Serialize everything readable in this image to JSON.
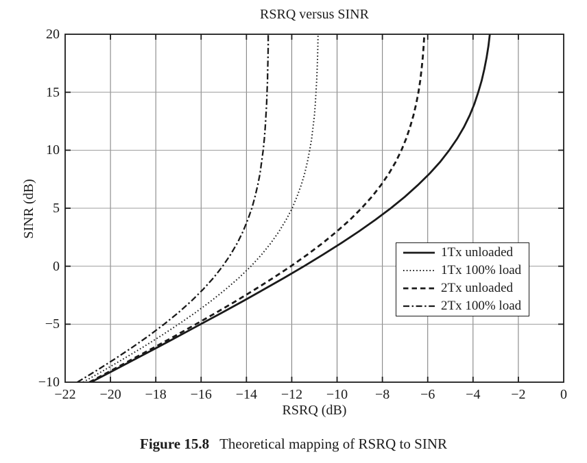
{
  "figure": {
    "title": "RSRQ versus SINR",
    "caption": {
      "label": "Figure 15.8",
      "text": "Theoretical mapping of RSRQ to SINR"
    }
  },
  "colors": {
    "line": "#1a1a1a",
    "grid_vertical": "#787878",
    "grid_horizontal": "#9c9c9c",
    "axis": "#1b1b1b",
    "text": "#1b1b1b",
    "background": "#ffffff",
    "legend_border": "#1b1b1b"
  },
  "chart_data": {
    "type": "line",
    "title": "RSRQ versus SINR",
    "xlabel": "RSRQ (dB)",
    "ylabel": "SINR (dB)",
    "xlim": [
      -22,
      0
    ],
    "ylim": [
      -10,
      20
    ],
    "x_ticks": [
      -22,
      -20,
      -18,
      -16,
      -14,
      -12,
      -10,
      -8,
      -6,
      -4,
      -2,
      0
    ],
    "y_ticks": [
      -10,
      -5,
      0,
      5,
      10,
      15,
      20
    ],
    "grid": true,
    "legend_position": "middle-right",
    "series": [
      {
        "name": "1Tx unloaded",
        "line_style": "solid",
        "asymptote_rsrq_db": -3.01,
        "points": [
          [
            -20.86,
            -10
          ],
          [
            -19.88,
            -9
          ],
          [
            -18.9,
            -8
          ],
          [
            -17.93,
            -7
          ],
          [
            -16.97,
            -6
          ],
          [
            -16.02,
            -5
          ],
          [
            -15.07,
            -4
          ],
          [
            -14.14,
            -3
          ],
          [
            -13.23,
            -2
          ],
          [
            -12.33,
            -1
          ],
          [
            -11.46,
            0
          ],
          [
            -10.62,
            1
          ],
          [
            -9.81,
            2
          ],
          [
            -9.04,
            3
          ],
          [
            -8.31,
            4
          ],
          [
            -7.63,
            5
          ],
          [
            -7.0,
            6
          ],
          [
            -6.43,
            7
          ],
          [
            -5.91,
            8
          ],
          [
            -5.45,
            9
          ],
          [
            -5.05,
            10
          ],
          [
            -4.7,
            11
          ],
          [
            -4.4,
            12
          ],
          [
            -4.15,
            13
          ],
          [
            -3.94,
            14
          ],
          [
            -3.77,
            15
          ],
          [
            -3.62,
            16
          ],
          [
            -3.5,
            17
          ],
          [
            -3.4,
            18
          ],
          [
            -3.32,
            19
          ],
          [
            -3.26,
            20
          ]
        ]
      },
      {
        "name": "1Tx 100% load",
        "line_style": "dotted",
        "asymptote_rsrq_db": -10.79,
        "points": [
          [
            -21.21,
            -10
          ],
          [
            -20.31,
            -9
          ],
          [
            -19.43,
            -8
          ],
          [
            -18.58,
            -7
          ],
          [
            -17.77,
            -6
          ],
          [
            -16.99,
            -5
          ],
          [
            -16.25,
            -4
          ],
          [
            -15.56,
            -3
          ],
          [
            -14.92,
            -2
          ],
          [
            -14.33,
            -1
          ],
          [
            -13.8,
            0
          ],
          [
            -13.33,
            1
          ],
          [
            -12.92,
            2
          ],
          [
            -12.56,
            3
          ],
          [
            -12.25,
            4
          ],
          [
            -11.98,
            5
          ],
          [
            -11.77,
            6
          ],
          [
            -11.58,
            7
          ],
          [
            -11.43,
            8
          ],
          [
            -11.31,
            9
          ],
          [
            -11.21,
            10
          ],
          [
            -11.12,
            11
          ],
          [
            -11.06,
            12
          ],
          [
            -11.0,
            13
          ],
          [
            -10.96,
            14
          ],
          [
            -10.93,
            15
          ],
          [
            -10.9,
            16
          ],
          [
            -10.88,
            17
          ],
          [
            -10.86,
            18
          ],
          [
            -10.85,
            19
          ],
          [
            -10.84,
            20
          ]
        ]
      },
      {
        "name": "2Tx unloaded",
        "line_style": "dashed",
        "asymptote_rsrq_db": -6.02,
        "points": [
          [
            -20.93,
            -10
          ],
          [
            -19.97,
            -9
          ],
          [
            -19.02,
            -8
          ],
          [
            -18.07,
            -7
          ],
          [
            -17.14,
            -6
          ],
          [
            -16.23,
            -5
          ],
          [
            -15.33,
            -4
          ],
          [
            -14.46,
            -3
          ],
          [
            -13.62,
            -2
          ],
          [
            -12.81,
            -1
          ],
          [
            -12.04,
            0
          ],
          [
            -11.31,
            1
          ],
          [
            -10.63,
            2
          ],
          [
            -10.01,
            3
          ],
          [
            -9.43,
            4
          ],
          [
            -8.92,
            5
          ],
          [
            -8.46,
            6
          ],
          [
            -8.06,
            7
          ],
          [
            -7.71,
            8
          ],
          [
            -7.41,
            9
          ],
          [
            -7.16,
            10
          ],
          [
            -6.95,
            11
          ],
          [
            -6.78,
            12
          ],
          [
            -6.63,
            13
          ],
          [
            -6.51,
            14
          ],
          [
            -6.41,
            15
          ],
          [
            -6.33,
            16
          ],
          [
            -6.27,
            17
          ],
          [
            -6.22,
            18
          ],
          [
            -6.18,
            19
          ],
          [
            -6.15,
            20
          ]
        ]
      },
      {
        "name": "2Tx 100% load",
        "line_style": "dash-dot",
        "asymptote_rsrq_db": -13.01,
        "points": [
          [
            -21.46,
            -10
          ],
          [
            -20.62,
            -9
          ],
          [
            -19.81,
            -8
          ],
          [
            -19.04,
            -7
          ],
          [
            -18.31,
            -6
          ],
          [
            -17.63,
            -5
          ],
          [
            -17.0,
            -4
          ],
          [
            -16.43,
            -3
          ],
          [
            -15.91,
            -2
          ],
          [
            -15.45,
            -1
          ],
          [
            -15.05,
            0
          ],
          [
            -14.7,
            1
          ],
          [
            -14.4,
            2
          ],
          [
            -14.15,
            3
          ],
          [
            -13.94,
            4
          ],
          [
            -13.76,
            5
          ],
          [
            -13.62,
            6
          ],
          [
            -13.5,
            7
          ],
          [
            -13.4,
            8
          ],
          [
            -13.33,
            9
          ],
          [
            -13.26,
            10
          ],
          [
            -13.21,
            11
          ],
          [
            -13.17,
            12
          ],
          [
            -13.14,
            13
          ],
          [
            -13.11,
            14
          ],
          [
            -13.09,
            15
          ],
          [
            -13.07,
            16
          ],
          [
            -13.06,
            17
          ],
          [
            -13.05,
            18
          ],
          [
            -13.04,
            19
          ],
          [
            -13.04,
            20
          ]
        ]
      }
    ]
  }
}
